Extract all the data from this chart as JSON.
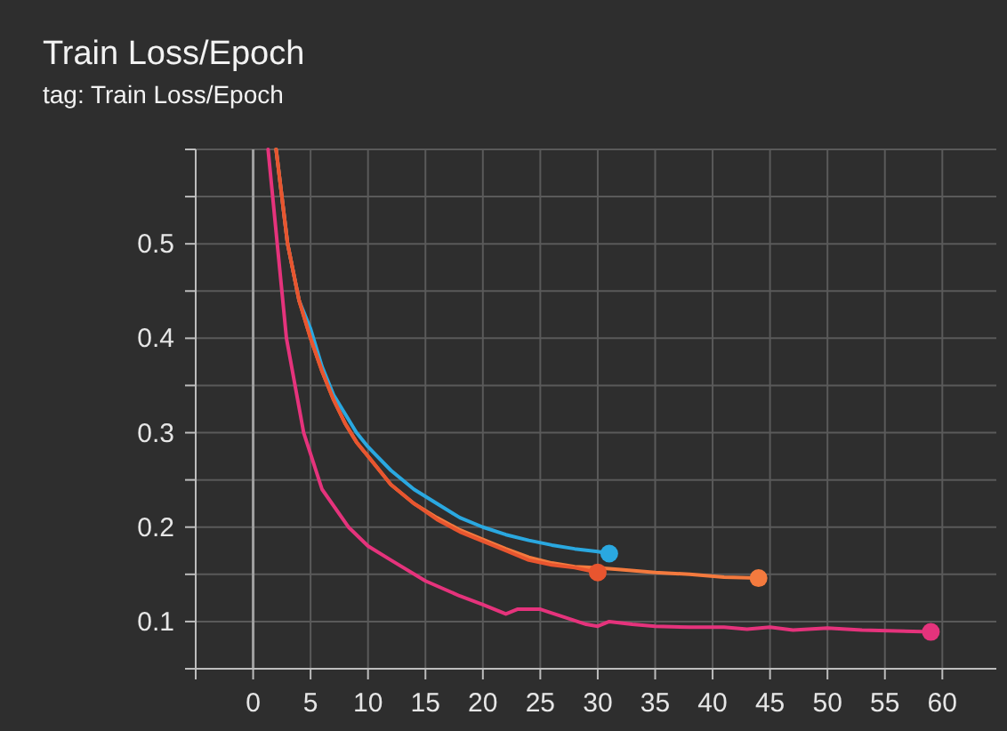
{
  "chart_data": {
    "type": "line",
    "title": "Train Loss/Epoch",
    "subtitle": "tag: Train Loss/Epoch",
    "xlim": [
      -5,
      64.7
    ],
    "xticks": [
      {
        "value": -5,
        "label": null
      },
      0,
      5,
      10,
      15,
      20,
      25,
      30,
      35,
      40,
      45,
      50,
      55,
      60
    ],
    "ylim": [
      0.05,
      0.6
    ],
    "yticks": [
      {
        "value": 0.05,
        "label": null
      },
      0.1,
      {
        "value": 0.15,
        "label": null
      },
      0.2,
      {
        "value": 0.25,
        "label": null
      },
      0.3,
      {
        "value": 0.35,
        "label": null
      },
      0.4,
      {
        "value": 0.45,
        "label": null
      },
      0.5,
      {
        "value": 0.55,
        "label": null
      },
      {
        "value": 0.6,
        "label": null
      }
    ],
    "grid": true,
    "line_style": "solid",
    "ref_lines": [
      {
        "axis": "x",
        "value": 0,
        "color": "#a0a0a0"
      }
    ],
    "series": [
      {
        "color": "#2aa8e0",
        "x": [
          2,
          3,
          4,
          5,
          6,
          7,
          8,
          9,
          10,
          12,
          14,
          16,
          18,
          20,
          22,
          24,
          26,
          28,
          30,
          31
        ],
        "values": [
          0.6,
          0.5,
          0.44,
          0.41,
          0.37,
          0.34,
          0.32,
          0.3,
          0.285,
          0.26,
          0.24,
          0.225,
          0.21,
          0.2,
          0.192,
          0.186,
          0.181,
          0.177,
          0.174,
          0.172
        ]
      },
      {
        "color": "#f47a3e",
        "x": [
          2,
          3,
          4,
          5,
          6,
          7,
          8,
          9,
          10,
          12,
          14,
          16,
          18,
          20,
          22,
          24,
          26,
          28,
          30,
          32,
          35,
          38,
          41,
          44
        ],
        "values": [
          0.6,
          0.5,
          0.44,
          0.4,
          0.365,
          0.335,
          0.31,
          0.29,
          0.275,
          0.245,
          0.225,
          0.21,
          0.197,
          0.187,
          0.177,
          0.168,
          0.162,
          0.158,
          0.157,
          0.155,
          0.152,
          0.15,
          0.147,
          0.146
        ]
      },
      {
        "color": "#e8552f",
        "x": [
          2,
          3,
          4,
          5,
          6,
          7,
          8,
          9,
          10,
          12,
          14,
          16,
          18,
          20,
          22,
          24,
          26,
          28,
          30
        ],
        "values": [
          0.6,
          0.5,
          0.44,
          0.4,
          0.365,
          0.335,
          0.31,
          0.29,
          0.275,
          0.245,
          0.225,
          0.208,
          0.195,
          0.185,
          0.175,
          0.165,
          0.16,
          0.157,
          0.152
        ]
      },
      {
        "color": "#e5337c",
        "x": [
          1.3,
          2.1,
          2.9,
          4.4,
          6,
          8.3,
          10,
          12,
          15,
          18,
          20,
          22,
          23,
          25,
          27,
          29,
          30,
          31,
          33,
          35,
          38,
          41,
          43,
          45,
          47,
          50,
          53,
          56,
          59
        ],
        "values": [
          0.6,
          0.5,
          0.4,
          0.3,
          0.24,
          0.2,
          0.18,
          0.165,
          0.143,
          0.127,
          0.118,
          0.108,
          0.113,
          0.113,
          0.105,
          0.097,
          0.095,
          0.1,
          0.097,
          0.095,
          0.094,
          0.094,
          0.092,
          0.094,
          0.091,
          0.093,
          0.091,
          0.09,
          0.089
        ]
      }
    ]
  }
}
